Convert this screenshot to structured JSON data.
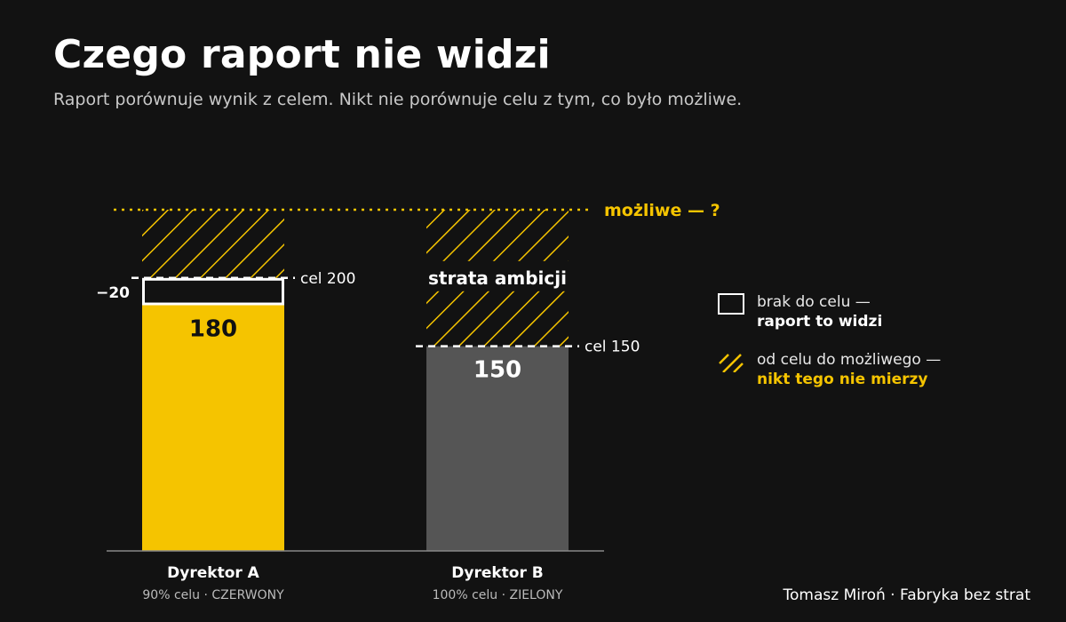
{
  "header": {
    "title": "Czego raport nie widzi",
    "subtitle": "Raport porównuje wynik z celem. Nikt nie porównuje celu z tym, co było możliwe."
  },
  "chart_data": {
    "type": "bar",
    "title": "Czego raport nie widzi",
    "subtitle": "Raport porównuje wynik z celem. Nikt nie porównuje celu z tym, co było możliwe.",
    "categories": [
      "Dyrektor A",
      "Dyrektor B"
    ],
    "category_sublabels": [
      "90% celu · CZERWONY",
      "100% celu · ZIELONY"
    ],
    "values": [
      180,
      150
    ],
    "value_labels": [
      "180",
      "150"
    ],
    "targets": [
      200,
      150
    ],
    "target_labels": [
      "cel 200",
      "cel 150"
    ],
    "gap_labels": [
      "−20",
      ""
    ],
    "possible_value": 250,
    "possible_label": "możliwe — ?",
    "hatch_annotation": "strata ambicji",
    "ylim": [
      0,
      270
    ],
    "grid": false,
    "colors": {
      "bar_a": "#f5c400",
      "bar_b": "#555555",
      "accent": "#f5c400",
      "gap_outline": "#ffffff",
      "background": "#121212",
      "baseline": "#888888"
    }
  },
  "legend": {
    "position": "right",
    "items": [
      {
        "icon": "outline-box",
        "line1": "brak do celu —",
        "line2": "raport to widzi"
      },
      {
        "icon": "hatch",
        "line1": "od celu do możliwego —",
        "line2": "nikt tego nie mierzy"
      }
    ]
  },
  "footer": {
    "credit": "Tomasz Miroń · Fabryka bez strat"
  }
}
